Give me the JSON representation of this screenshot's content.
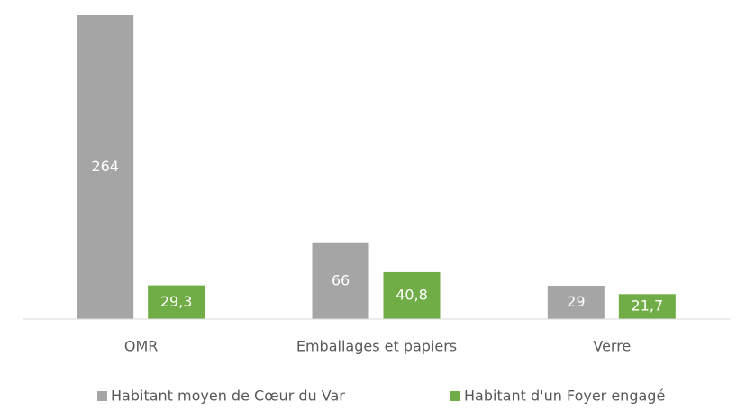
{
  "chart_data": {
    "type": "bar",
    "categories": [
      "OMR",
      "Emballages et papiers",
      "Verre"
    ],
    "series": [
      {
        "name": "Habitant moyen de Cœur du Var",
        "color": "#a5a5a5",
        "values": [
          264,
          66,
          29
        ]
      },
      {
        "name": "Habitant d'un Foyer engagé",
        "color": "#70ad47",
        "values": [
          29.3,
          40.8,
          21.7
        ],
        "value_labels": [
          "29,3",
          "40,8",
          "21,7"
        ]
      }
    ],
    "ylim": [
      0,
      264
    ]
  }
}
